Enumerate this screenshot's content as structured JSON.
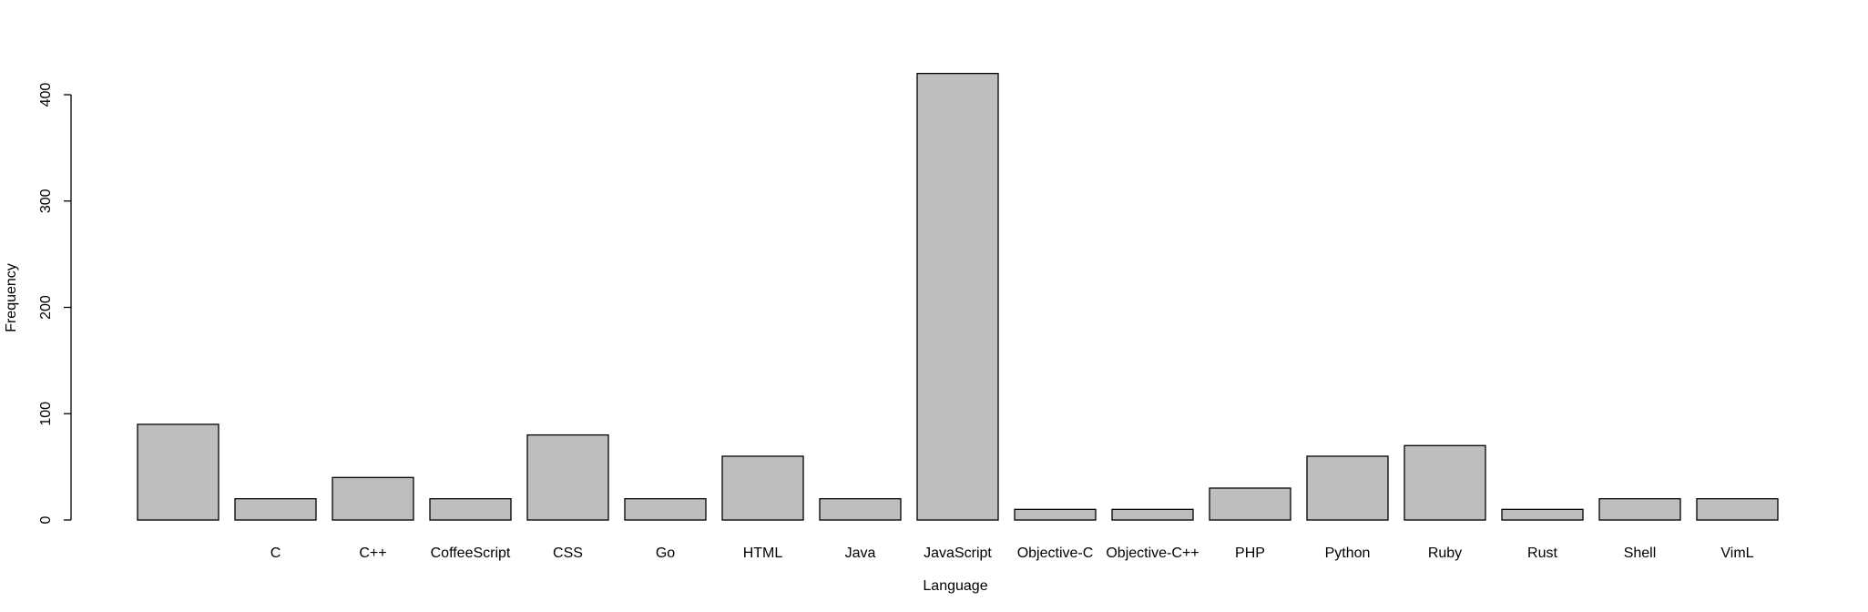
{
  "chart_data": {
    "type": "bar",
    "categories": [
      "",
      "C",
      "C++",
      "CoffeeScript",
      "CSS",
      "Go",
      "HTML",
      "Java",
      "JavaScript",
      "Objective-C",
      "Objective-C++",
      "PHP",
      "Python",
      "Ruby",
      "Rust",
      "Shell",
      "VimL"
    ],
    "values": [
      90,
      20,
      40,
      20,
      80,
      20,
      60,
      20,
      420,
      10,
      10,
      30,
      60,
      70,
      10,
      20,
      20
    ],
    "title": "",
    "xlabel": "Language",
    "ylabel": "Frequency",
    "ylim": [
      0,
      420
    ],
    "yticks": [
      0,
      100,
      200,
      300,
      400
    ],
    "grid": false,
    "legend": "none",
    "colors": {
      "bar_fill": "#bebebe",
      "bar_stroke": "#000000"
    }
  }
}
